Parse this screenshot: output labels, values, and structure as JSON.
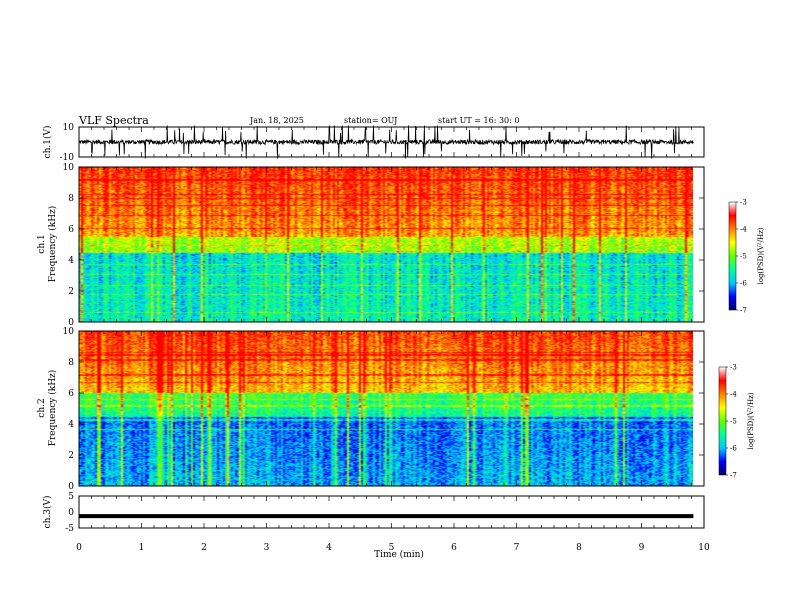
{
  "header": {
    "title": "VLF Spectra",
    "date": "Jan. 18, 2025",
    "station": "station= OUJ",
    "start_ut": "start  UT =  16: 30: 0"
  },
  "chart_data": [
    {
      "type": "line",
      "panel": "ch1-waveform",
      "ylabel": "ch.1(V)",
      "ylim": [
        -10,
        10
      ],
      "yticks": [
        "10",
        "-10"
      ],
      "xlim": [
        0,
        10
      ],
      "baseline": 0,
      "description_of_series": "noisy voltage trace with spikes"
    },
    {
      "type": "heatmap",
      "panel": "ch1-spectrogram",
      "ylabel_line1": "ch.1",
      "ylabel_line2": "Frequency (kHz)",
      "ylim": [
        0,
        10
      ],
      "yticks": [
        "0",
        "2",
        "4",
        "6",
        "8",
        "10"
      ],
      "xlim": [
        0,
        9.83
      ],
      "colorbar": {
        "label": "log(PSD)(V²/Hz)",
        "range": [
          -7,
          -3
        ],
        "ticks": [
          "-3",
          "-4",
          "-5",
          "-6",
          "-7"
        ]
      }
    },
    {
      "type": "heatmap",
      "panel": "ch2-spectrogram",
      "ylabel_line1": "ch.2",
      "ylabel_line2": "Frequency (kHz)",
      "ylim": [
        0,
        10
      ],
      "yticks": [
        "0",
        "2",
        "4",
        "6",
        "8",
        "10"
      ],
      "xlim": [
        0,
        9.83
      ],
      "colorbar": {
        "label": "log(PSD)(V²/Hz)",
        "range": [
          -7,
          -3
        ],
        "ticks": [
          "-3",
          "-4",
          "-5",
          "-6",
          "-7"
        ]
      }
    },
    {
      "type": "line",
      "panel": "ch3-waveform",
      "ylabel": "ch.3(V)",
      "ylim": [
        -5,
        5
      ],
      "yticks": [
        "5",
        "0",
        "-5"
      ],
      "xlim": [
        0,
        10
      ],
      "constant_value": -1.3
    }
  ],
  "x_axis": {
    "label": "Time (min)",
    "ticks": [
      "0",
      "1",
      "2",
      "3",
      "4",
      "5",
      "6",
      "7",
      "8",
      "9",
      "10"
    ],
    "range": [
      0,
      10
    ]
  },
  "colors": {
    "scale": [
      "#00006a",
      "#0000ff",
      "#00c8ff",
      "#00ff96",
      "#64ff00",
      "#ffff00",
      "#ff8000",
      "#ff0000",
      "#ffffff"
    ]
  }
}
